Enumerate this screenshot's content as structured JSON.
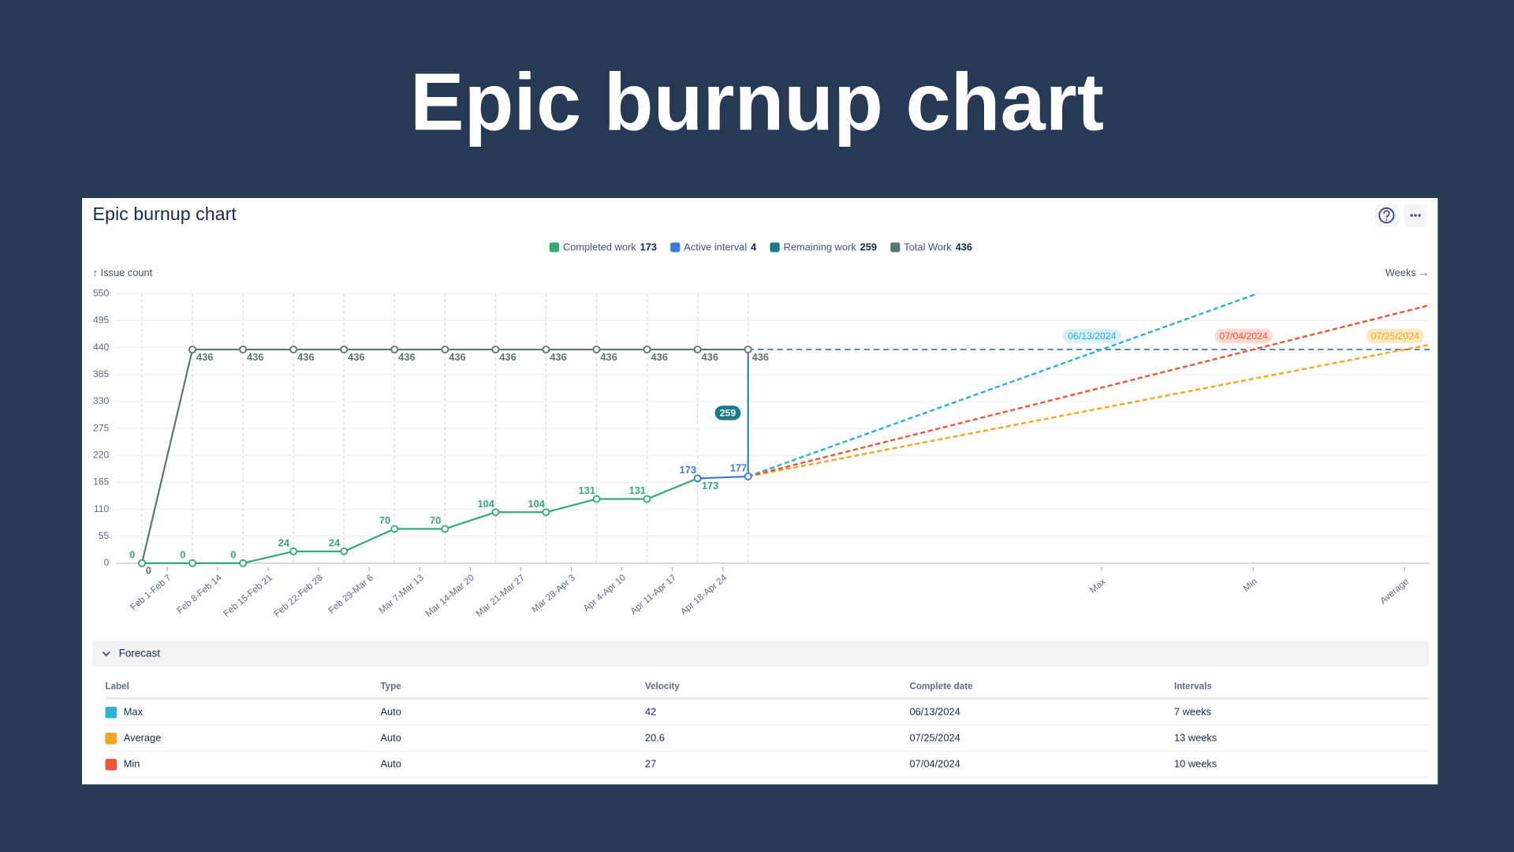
{
  "heading": "Epic burnup chart",
  "panel": {
    "title": "Epic burnup chart"
  },
  "chart_data": {
    "type": "line",
    "y_label": "↑ Issue count",
    "x_label": "Weeks →",
    "categories": [
      "Feb 1-Feb 7",
      "Feb 8-Feb 14",
      "Feb 15-Feb 21",
      "Feb 22-Feb 28",
      "Feb 29-Mar 6",
      "Mar 7-Mar 13",
      "Mar 14-Mar 20",
      "Mar 21-Mar 27",
      "Mar 28-Apr 3",
      "Apr 4-Apr 10",
      "Apr 11-Apr 17",
      "Apr 18-Apr 24",
      null
    ],
    "xlim": [
      0,
      25.5
    ],
    "ylim": [
      0,
      550
    ],
    "yticks": [
      0,
      55,
      110,
      165,
      220,
      275,
      330,
      385,
      440,
      495,
      550
    ],
    "grid": true,
    "total_projection_color": "#3d6aa3",
    "series": [
      {
        "name": "Completed work",
        "color": "#36a97a",
        "kind": "line",
        "label_position": "above",
        "legend_value": 173,
        "values": [
          0,
          0,
          0,
          24,
          24,
          70,
          70,
          104,
          104,
          131,
          131,
          173,
          null
        ]
      },
      {
        "name": "Active interval",
        "color": "#3a78dc",
        "kind": "line",
        "label_position": "above",
        "legend_value": 4,
        "values": [
          null,
          null,
          null,
          null,
          null,
          null,
          null,
          null,
          null,
          null,
          null,
          173,
          177
        ]
      },
      {
        "name": "Remaining work",
        "color": "#1c7a8c",
        "kind": "segment",
        "legend_value": 259,
        "values": [
          null,
          null,
          null,
          null,
          null,
          null,
          null,
          null,
          null,
          null,
          null,
          null,
          259
        ]
      },
      {
        "name": "Total Work",
        "color": "#5f7470",
        "kind": "line",
        "label_position": "below",
        "legend_value": 436,
        "values": [
          0,
          436,
          436,
          436,
          436,
          436,
          436,
          436,
          436,
          436,
          436,
          436,
          436
        ]
      }
    ]
  },
  "forecast": {
    "title": "Forecast",
    "columns": [
      "Label",
      "Type",
      "Velocity",
      "Complete date",
      "Intervals"
    ],
    "rows": [
      {
        "label": "Max",
        "type": "Auto",
        "velocity": 42,
        "date": "06/13/2024",
        "interval": {
          "value": 7,
          "label": "7 weeks"
        },
        "color": "#2bb3d6",
        "pill_color": "#d8f1f9"
      },
      {
        "label": "Average",
        "type": "Auto",
        "velocity": 20.6,
        "date": "07/25/2024",
        "interval": {
          "value": 13,
          "label": "13 weeks"
        },
        "color": "#f5a623",
        "pill_color": "#fde8c2"
      },
      {
        "label": "Min",
        "type": "Auto",
        "velocity": 27,
        "date": "07/04/2024",
        "interval": {
          "value": 10,
          "label": "10 weeks"
        },
        "color": "#f0553a",
        "pill_color": "#fdd8cf"
      }
    ]
  }
}
